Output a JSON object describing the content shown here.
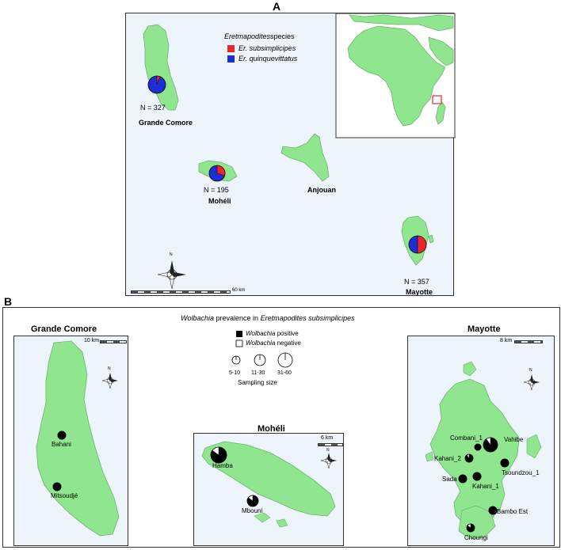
{
  "panel_a": {
    "letter": "A",
    "legend_title_italic": "Eretmapodites",
    "legend_title_rest": " species",
    "legend_items": [
      {
        "label": "Er. subsimplicipes",
        "color": "#e8262b"
      },
      {
        "label": "Er. quinquevittatus",
        "color": "#1c2fd6"
      }
    ],
    "islands": [
      {
        "name": "Grande Comore",
        "n_label": "N = 327",
        "subsimplicipes_fraction": 0.06
      },
      {
        "name": "Mohéli",
        "n_label": "N = 195",
        "subsimplicipes_fraction": 0.3
      },
      {
        "name": "Anjouan",
        "n_label": "",
        "subsimplicipes_fraction": null
      },
      {
        "name": "Mayotte",
        "n_label": "N = 357",
        "subsimplicipes_fraction": 0.5
      }
    ],
    "scale_label": "60 km",
    "north_label": "N"
  },
  "panel_b": {
    "letter": "B",
    "title_italic_1": "Wolbachia",
    "title_mid": " prevalence in ",
    "title_italic_2": "Eretmapodites subsimplicipes",
    "legend_positive_italic": "Wolbachia",
    "legend_positive_rest": " positive",
    "legend_negative_italic": "Wolbachia",
    "legend_negative_rest": " negative",
    "size_labels": [
      "5-10",
      "11-30",
      "31-60"
    ],
    "size_caption": "Sampling size",
    "north_label": "N",
    "maps": [
      {
        "title": "Grande Comore",
        "scale": "10 km",
        "sites": [
          {
            "name": "Bahani",
            "positive_fraction": 1.0
          },
          {
            "name": "Mitsoudjé",
            "positive_fraction": 1.0
          }
        ]
      },
      {
        "title": "Mohéli",
        "scale": "6 km",
        "sites": [
          {
            "name": "Hamba",
            "positive_fraction": 0.85
          },
          {
            "name": "Mbouni",
            "positive_fraction": 0.85
          }
        ]
      },
      {
        "title": "Mayotte",
        "scale": "8 km",
        "sites": [
          {
            "name": "Combani_1",
            "positive_fraction": 1.0
          },
          {
            "name": "Vahibe",
            "positive_fraction": 0.9
          },
          {
            "name": "Kahani_2",
            "positive_fraction": 0.9
          },
          {
            "name": "Tsoundzou_1",
            "positive_fraction": 1.0
          },
          {
            "name": "Sada",
            "positive_fraction": 1.0
          },
          {
            "name": "Kahani_1",
            "positive_fraction": 1.0
          },
          {
            "name": "Bambo Est",
            "positive_fraction": 1.0
          },
          {
            "name": "Choungi",
            "positive_fraction": 0.85
          }
        ]
      }
    ]
  },
  "colors": {
    "land": "#8fe68f",
    "land_stroke": "#6fb36f",
    "sea": "#eef4fb",
    "positive": "#000000",
    "negative": "#ffffff"
  }
}
